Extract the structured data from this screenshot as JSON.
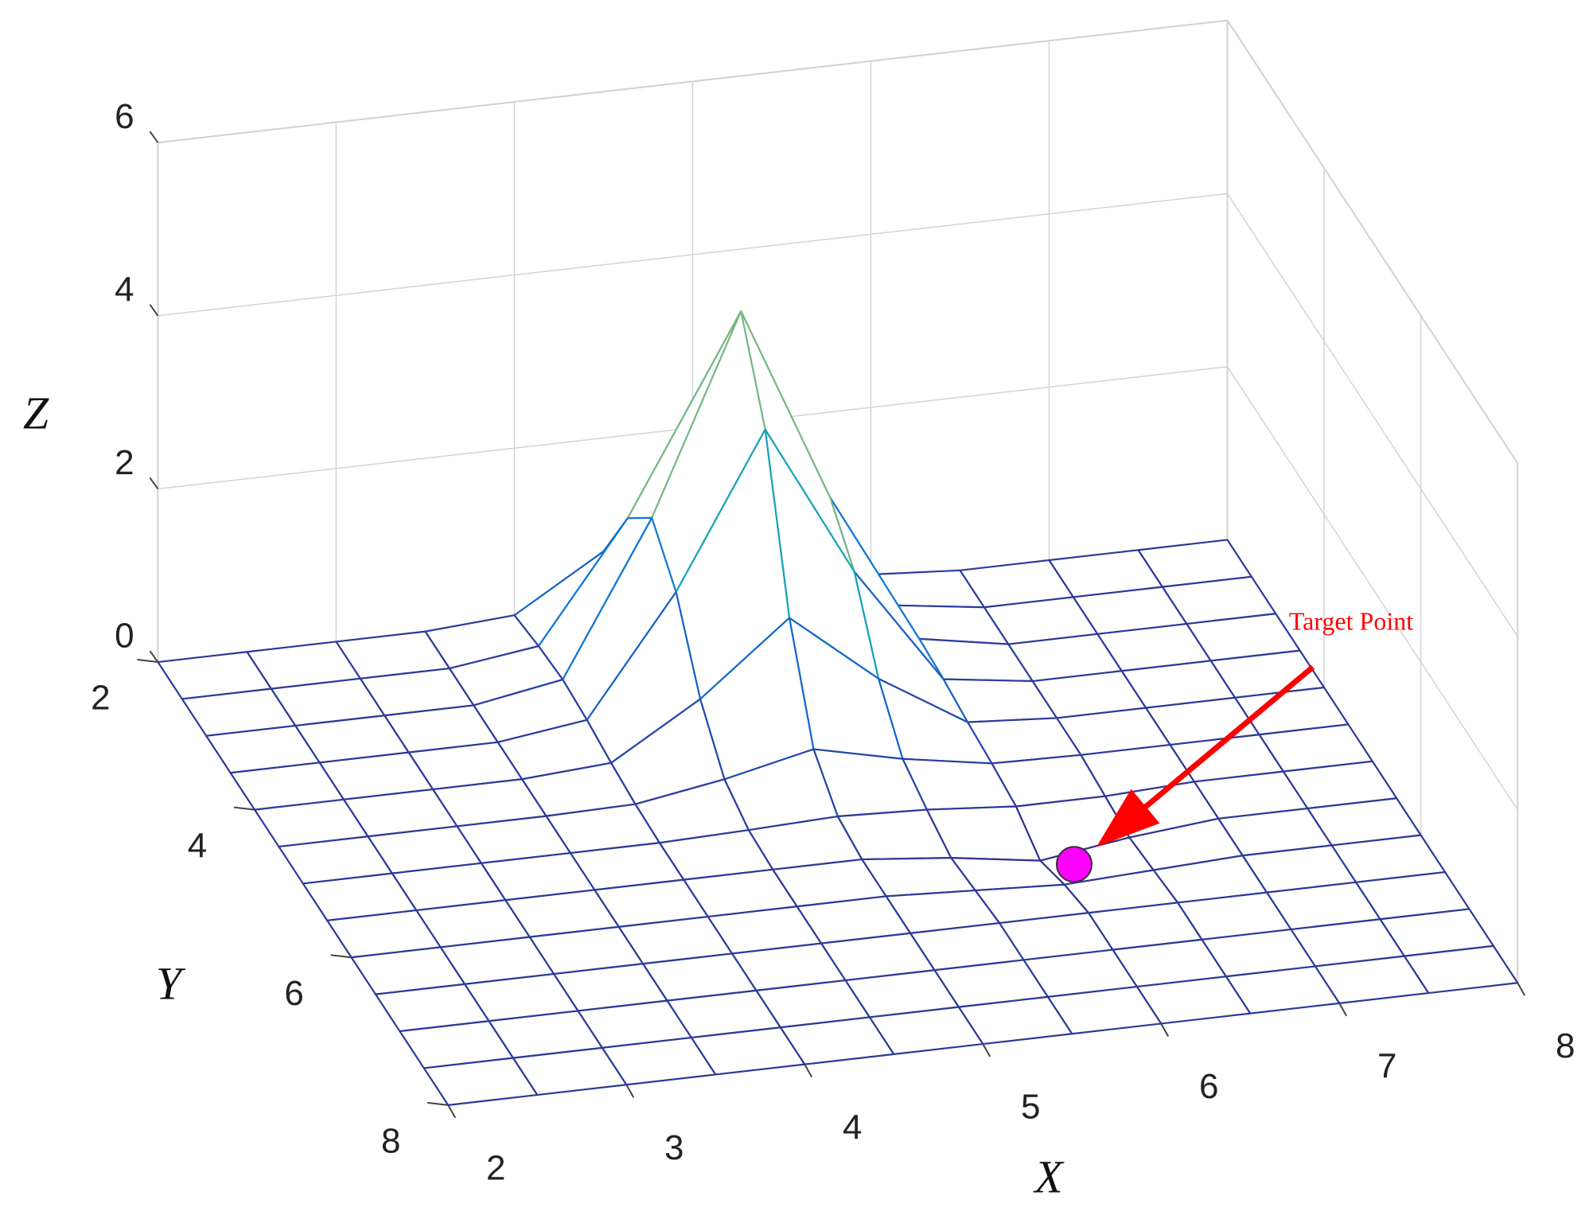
{
  "chart_data": {
    "type": "surface",
    "x": [
      2,
      2.5,
      3,
      3.5,
      4,
      4.5,
      5,
      5.5,
      6,
      6.5,
      7,
      7.5,
      8
    ],
    "y": [
      2,
      2.5,
      3,
      3.5,
      4,
      4.5,
      5,
      5.5,
      6,
      6.5,
      7,
      7.5,
      8
    ],
    "z": [
      [
        0,
        0,
        0,
        0,
        0.07,
        0.69,
        1.51,
        0.69,
        0.07,
        0,
        0,
        0,
        0
      ],
      [
        0,
        0,
        0,
        0,
        0.14,
        1.5,
        3.26,
        1.5,
        0.14,
        0,
        0,
        0,
        0
      ],
      [
        0,
        0,
        0,
        0,
        0.18,
        1.93,
        4.2,
        1.93,
        0.18,
        0,
        0,
        0,
        0
      ],
      [
        0,
        0,
        0,
        0,
        0.14,
        1.5,
        3.26,
        1.5,
        0.14,
        0,
        0,
        0,
        0
      ],
      [
        0,
        0,
        0,
        0,
        0.07,
        0.69,
        1.51,
        0.69,
        0.07,
        0,
        0,
        0,
        0
      ],
      [
        0,
        0,
        0,
        0,
        0.02,
        0.19,
        0.42,
        0.19,
        0.02,
        0,
        0,
        0,
        0
      ],
      [
        0,
        0,
        0,
        0,
        0,
        0.03,
        0.07,
        0.03,
        -0.05,
        -0.05,
        0,
        0,
        0
      ],
      [
        0,
        0,
        0,
        0,
        0,
        0,
        0,
        -0.1,
        -0.25,
        -0.1,
        0,
        0,
        0
      ],
      [
        0,
        0,
        0,
        0,
        0,
        0,
        0,
        -0.05,
        -0.1,
        -0.05,
        0,
        0,
        0
      ],
      [
        0,
        0,
        0,
        0,
        0,
        0,
        0,
        0,
        0,
        0,
        0,
        0,
        0
      ],
      [
        0,
        0,
        0,
        0,
        0,
        0,
        0,
        0,
        0,
        0,
        0,
        0,
        0
      ],
      [
        0,
        0,
        0,
        0,
        0,
        0,
        0,
        0,
        0,
        0,
        0,
        0,
        0
      ],
      [
        0,
        0,
        0,
        0,
        0,
        0,
        0,
        0,
        0,
        0,
        0,
        0,
        0
      ]
    ],
    "xlim": [
      2,
      8
    ],
    "ylim": [
      2,
      8
    ],
    "zlim": [
      0,
      6
    ],
    "xticks": [
      2,
      3,
      4,
      5,
      6,
      7,
      8
    ],
    "yticks": [
      2,
      4,
      6,
      8
    ],
    "zticks": [
      0,
      2,
      4,
      6
    ],
    "xlabel": "X",
    "ylabel": "Y",
    "zlabel": "Z",
    "grid": true,
    "colormap": [
      "#352a87",
      "#0f72d9",
      "#18b0b4",
      "#a3bd6a",
      "#f9fb0e"
    ],
    "marker": {
      "x": 6.15,
      "y": 5.65,
      "z": -0.2,
      "color": "#ff00ff"
    },
    "annotation": {
      "text": "Target Point",
      "color": "#ff0000"
    }
  }
}
